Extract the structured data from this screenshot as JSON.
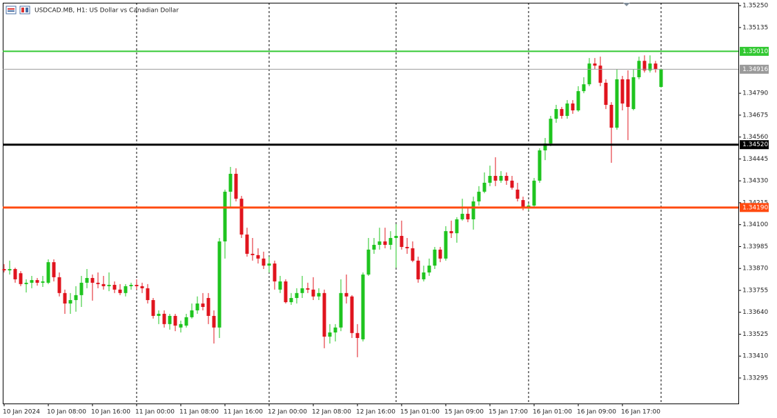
{
  "chart_data": {
    "type": "candlestick",
    "title": "USDCAD.MB, H1:  US Dollar vs Canadian Dollar",
    "categories": [
      "10 Jan 2024",
      null,
      null,
      null,
      null,
      null,
      null,
      null,
      "10 Jan 08:00",
      null,
      null,
      null,
      null,
      null,
      null,
      null,
      "10 Jan 16:00",
      null,
      null,
      null,
      null,
      null,
      null,
      null,
      "11 Jan 00:00",
      null,
      null,
      null,
      null,
      null,
      null,
      null,
      "11 Jan 08:00",
      null,
      null,
      null,
      null,
      null,
      null,
      null,
      "11 Jan 16:00",
      null,
      null,
      null,
      null,
      null,
      null,
      null,
      "12 Jan 00:00",
      null,
      null,
      null,
      null,
      null,
      null,
      null,
      "12 Jan 08:00",
      null,
      null,
      null,
      null,
      null,
      null,
      null,
      "12 Jan 16:00",
      null,
      null,
      null,
      null,
      null,
      null,
      null,
      "15 Jan 01:00",
      null,
      null,
      null,
      null,
      null,
      null,
      null,
      "15 Jan 09:00",
      null,
      null,
      null,
      null,
      null,
      null,
      null,
      "15 Jan 17:00",
      null,
      null,
      null,
      null,
      null,
      null,
      null,
      "16 Jan 01:00",
      null,
      null,
      null,
      null,
      null,
      null,
      null,
      "16 Jan 09:00",
      null,
      null,
      null,
      null,
      null,
      null,
      null,
      "16 Jan 17:00",
      null,
      null,
      null,
      null,
      null,
      null,
      null
    ],
    "open": [
      1.33867,
      1.3386,
      1.33867,
      1.33845,
      1.33788,
      1.33795,
      1.33809,
      1.33795,
      1.33795,
      1.33903,
      1.33824,
      1.33741,
      1.33686,
      1.33704,
      1.3373,
      1.33795,
      1.3382,
      1.33795,
      1.33788,
      1.33777,
      1.33784,
      1.33759,
      1.33741,
      1.33777,
      1.33784,
      1.33777,
      1.33766,
      1.33704,
      1.33621,
      1.33632,
      1.33578,
      1.33621,
      1.3356,
      1.3357,
      1.33614,
      1.3365,
      1.33686,
      1.33715,
      1.33621,
      1.3356,
      1.34012,
      1.34273,
      1.34367,
      1.34236,
      1.34048,
      1.33947,
      1.3394,
      1.33922,
      1.33885,
      1.33896,
      1.33759,
      1.33802,
      1.33693,
      1.33715,
      1.33741,
      1.33766,
      1.33759,
      1.33723,
      1.33741,
      1.33512,
      1.33534,
      1.3356,
      1.33741,
      1.33723,
      1.33531,
      1.33498,
      1.33838,
      1.33969,
      1.33994,
      1.34012,
      1.33994,
      1.3403,
      1.34041,
      1.33983,
      1.33976,
      1.33911,
      1.33813,
      1.33849,
      1.33885,
      1.33969,
      1.33922,
      1.34066,
      1.34055,
      1.34128,
      1.34157,
      1.34128,
      1.34222,
      1.34273,
      1.3432,
      1.34356,
      1.34331,
      1.34356,
      1.34331,
      1.34284,
      1.34229,
      1.34193,
      1.342,
      1.34331,
      1.3449,
      1.34526,
      1.34656,
      1.34707,
      1.34671,
      1.34736,
      1.347,
      1.34801,
      1.34837,
      1.34946,
      1.34935,
      1.34845,
      1.34729,
      1.34609,
      1.34863,
      1.34863,
      1.34707,
      1.34874,
      1.3496,
      1.3491,
      1.34946,
      1.34823
    ],
    "high": [
      1.33893,
      1.33911,
      1.33874,
      1.33856,
      1.33813,
      1.33831,
      1.3382,
      1.33831,
      1.33918,
      1.33918,
      1.33849,
      1.33759,
      1.33741,
      1.33777,
      1.33831,
      1.33867,
      1.33838,
      1.33849,
      1.33831,
      1.33849,
      1.33802,
      1.33788,
      1.33788,
      1.33795,
      1.33813,
      1.33795,
      1.33788,
      1.33715,
      1.3365,
      1.3365,
      1.33632,
      1.33632,
      1.33596,
      1.33632,
      1.33686,
      1.33723,
      1.33741,
      1.33741,
      1.3365,
      1.3403,
      1.34284,
      1.34403,
      1.34396,
      1.34251,
      1.34084,
      1.3403,
      1.33976,
      1.33958,
      1.33932,
      1.33911,
      1.33831,
      1.33813,
      1.33741,
      1.33766,
      1.33831,
      1.33795,
      1.33824,
      1.33766,
      1.33759,
      1.33578,
      1.33578,
      1.33813,
      1.33838,
      1.3373,
      1.33578,
      1.33849,
      1.3403,
      1.3403,
      1.34084,
      1.34084,
      1.34066,
      1.34103,
      1.34121,
      1.3403,
      1.34012,
      1.33932,
      1.33885,
      1.33922,
      1.33983,
      1.33983,
      1.34092,
      1.34121,
      1.34139,
      1.34236,
      1.34186,
      1.34247,
      1.34302,
      1.34374,
      1.3441,
      1.34454,
      1.34381,
      1.34374,
      1.34356,
      1.3432,
      1.34247,
      1.34211,
      1.34345,
      1.34501,
      1.34555,
      1.34671,
      1.34729,
      1.34718,
      1.34754,
      1.34754,
      1.34827,
      1.34874,
      1.34975,
      1.34975,
      1.34982,
      1.34863,
      1.34743,
      1.34917,
      1.34881,
      1.3491,
      1.34917,
      1.34982,
      1.34989,
      1.34989,
      1.3496,
      1.3492
    ],
    "low": [
      1.33849,
      1.33838,
      1.33795,
      1.33777,
      1.33744,
      1.33766,
      1.3378,
      1.33773,
      1.33788,
      1.33802,
      1.33723,
      1.33632,
      1.33632,
      1.33643,
      1.33668,
      1.33766,
      1.33701,
      1.33766,
      1.33759,
      1.33751,
      1.33741,
      1.3373,
      1.33723,
      1.33759,
      1.33759,
      1.33741,
      1.33686,
      1.33607,
      1.33578,
      1.3356,
      1.33549,
      1.33541,
      1.33534,
      1.3356,
      1.33607,
      1.33632,
      1.3365,
      1.33578,
      1.33476,
      1.33505,
      1.33922,
      1.34193,
      1.34222,
      1.3403,
      1.33932,
      1.33911,
      1.33896,
      1.33867,
      1.33849,
      1.33759,
      1.33741,
      1.33686,
      1.33679,
      1.33686,
      1.33715,
      1.33741,
      1.33704,
      1.33704,
      1.33451,
      1.33476,
      1.33487,
      1.33541,
      1.33686,
      1.33505,
      1.33404,
      1.33487,
      1.33831,
      1.33947,
      1.33969,
      1.33976,
      1.33969,
      1.33874,
      1.33969,
      1.33947,
      1.33903,
      1.33795,
      1.33802,
      1.33831,
      1.33867,
      1.33903,
      1.33911,
      1.3403,
      1.34005,
      1.34121,
      1.34113,
      1.34074,
      1.342,
      1.34265,
      1.34302,
      1.34302,
      1.3432,
      1.34309,
      1.34284,
      1.34222,
      1.34175,
      1.34175,
      1.34193,
      1.3432,
      1.34439,
      1.34512,
      1.34635,
      1.34656,
      1.34656,
      1.34682,
      1.34693,
      1.3479,
      1.34827,
      1.34917,
      1.34827,
      1.34707,
      1.34425,
      1.34598,
      1.347,
      1.34544,
      1.347,
      1.34863,
      1.34899,
      1.34899,
      1.34899,
      1.34819
    ],
    "close": [
      1.3386,
      1.33867,
      1.33813,
      1.33788,
      1.33795,
      1.33809,
      1.33795,
      1.33802,
      1.33903,
      1.33824,
      1.33741,
      1.33686,
      1.33704,
      1.3373,
      1.33795,
      1.3382,
      1.33795,
      1.33788,
      1.33777,
      1.33784,
      1.33759,
      1.33741,
      1.33777,
      1.33784,
      1.33777,
      1.33766,
      1.33704,
      1.33621,
      1.33632,
      1.33578,
      1.33621,
      1.3357,
      1.33578,
      1.33614,
      1.3365,
      1.33686,
      1.33668,
      1.33621,
      1.3356,
      1.34012,
      1.34273,
      1.34367,
      1.34236,
      1.34048,
      1.33947,
      1.3394,
      1.33922,
      1.33885,
      1.33896,
      1.33802,
      1.33802,
      1.33693,
      1.33715,
      1.33741,
      1.33766,
      1.33759,
      1.33723,
      1.33741,
      1.33512,
      1.33534,
      1.3356,
      1.33741,
      1.33723,
      1.33531,
      1.33505,
      1.33838,
      1.33969,
      1.33994,
      1.34012,
      1.33994,
      1.3403,
      1.34041,
      1.33983,
      1.33976,
      1.33911,
      1.33813,
      1.33849,
      1.33885,
      1.33969,
      1.33922,
      1.34066,
      1.34055,
      1.34128,
      1.34157,
      1.34128,
      1.34222,
      1.34273,
      1.3432,
      1.34356,
      1.34331,
      1.34356,
      1.34331,
      1.34294,
      1.34236,
      1.34193,
      1.342,
      1.34331,
      1.3449,
      1.34526,
      1.34656,
      1.34707,
      1.34671,
      1.34736,
      1.347,
      1.34801,
      1.34837,
      1.34946,
      1.34935,
      1.34845,
      1.34729,
      1.34609,
      1.34863,
      1.34736,
      1.34718,
      1.34874,
      1.3496,
      1.3491,
      1.34946,
      1.34917,
      1.34916
    ],
    "up_color": "#1fc41f",
    "down_color": "#e0141e",
    "ylim": [
      1.33161,
      1.35265
    ],
    "yticks": [
      {
        "value": 1.3525,
        "label": "1.35250"
      },
      {
        "value": 1.35135,
        "label": "1.35135"
      },
      {
        "value": 1.3479,
        "label": "1.34790"
      },
      {
        "value": 1.34675,
        "label": "1.34675"
      },
      {
        "value": 1.3456,
        "label": "1.34560"
      },
      {
        "value": 1.34445,
        "label": "1.34445"
      },
      {
        "value": 1.3433,
        "label": "1.34330"
      },
      {
        "value": 1.34215,
        "label": "1.34215"
      },
      {
        "value": 1.341,
        "label": "1.34100"
      },
      {
        "value": 1.33985,
        "label": "1.33985"
      },
      {
        "value": 1.3387,
        "label": "1.33870"
      },
      {
        "value": 1.33755,
        "label": "1.33755"
      },
      {
        "value": 1.3364,
        "label": "1.33640"
      },
      {
        "value": 1.33525,
        "label": "1.33525"
      },
      {
        "value": 1.3341,
        "label": "1.33410"
      },
      {
        "value": 1.33295,
        "label": "1.33295"
      }
    ],
    "levels": [
      {
        "value": 1.3501,
        "label": "1.35010",
        "color": "#32c832"
      },
      {
        "value": 1.34916,
        "label": "1.34916",
        "color": "#9a9a9a"
      },
      {
        "value": 1.3452,
        "label": "1.34520",
        "color": "#000000"
      },
      {
        "value": 1.3419,
        "label": "1.34190",
        "color": "#ff4a10"
      }
    ]
  }
}
